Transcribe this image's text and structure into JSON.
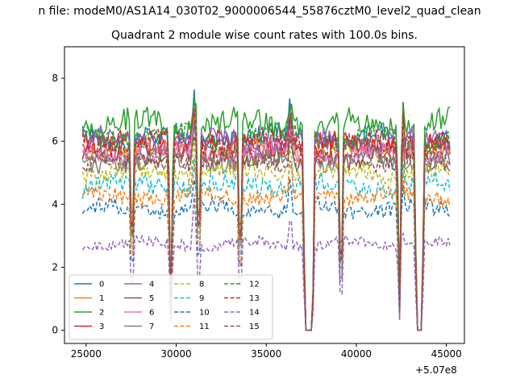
{
  "figure": {
    "suptitle": "n file: modeM0/AS1A14_030T02_9000006544_55876cztM0_level2_quad_clean",
    "offset_label": "+5.07e8"
  },
  "chart_data": {
    "type": "line",
    "title": "Quadrant 2 module wise count rates with 100.0s bins.",
    "xlabel": "",
    "ylabel": "",
    "xlim": [
      23800,
      46000
    ],
    "ylim": [
      -0.42,
      9.0
    ],
    "x_offset": 507000000,
    "x_ticks": [
      25000,
      30000,
      35000,
      40000,
      45000
    ],
    "y_ticks": [
      0,
      2,
      4,
      6,
      8
    ],
    "bin_width_s": 100.0,
    "segments": [
      [
        24800,
        37050
      ],
      [
        37700,
        43250
      ],
      [
        43750,
        45250
      ]
    ],
    "drop_regions": [
      [
        37050,
        37700
      ],
      [
        43250,
        43750
      ]
    ],
    "dips": [
      [
        27550,
        1.9
      ],
      [
        29700,
        0.55
      ],
      [
        31250,
        2.5
      ],
      [
        33550,
        1.5
      ],
      [
        39150,
        0.55
      ],
      [
        42400,
        0.55
      ]
    ],
    "spikes": [
      [
        31000,
        1.35
      ],
      [
        36350,
        1.25
      ],
      [
        42550,
        1.25
      ]
    ],
    "legend": {
      "position": "lower-left",
      "ncol": 4
    },
    "series": [
      {
        "name": "0",
        "color": "#1f77b4",
        "dash": "solid",
        "level": 6.1,
        "noise": 0.35
      },
      {
        "name": "1",
        "color": "#ff7f0e",
        "dash": "solid",
        "level": 5.7,
        "noise": 0.3
      },
      {
        "name": "2",
        "color": "#2ca02c",
        "dash": "solid",
        "level": 6.55,
        "noise": 0.38
      },
      {
        "name": "3",
        "color": "#d62728",
        "dash": "solid",
        "level": 5.9,
        "noise": 0.32
      },
      {
        "name": "4",
        "color": "#9467bd",
        "dash": "solid",
        "level": 6.0,
        "noise": 0.35
      },
      {
        "name": "5",
        "color": "#8c564b",
        "dash": "solid",
        "level": 5.5,
        "noise": 0.3
      },
      {
        "name": "6",
        "color": "#e377c2",
        "dash": "solid",
        "level": 5.6,
        "noise": 0.3
      },
      {
        "name": "7",
        "color": "#7f7f7f",
        "dash": "solid",
        "level": 5.35,
        "noise": 0.28
      },
      {
        "name": "8",
        "color": "#bcbd22",
        "dash": "dashed",
        "level": 5.0,
        "noise": 0.28
      },
      {
        "name": "9",
        "color": "#17becf",
        "dash": "dashed",
        "level": 4.6,
        "noise": 0.3
      },
      {
        "name": "10",
        "color": "#1f77b4",
        "dash": "dashed",
        "level": 3.85,
        "noise": 0.25
      },
      {
        "name": "11",
        "color": "#ff7f0e",
        "dash": "dashed",
        "level": 4.25,
        "noise": 0.25
      },
      {
        "name": "12",
        "color": "#2ca02c",
        "dash": "dashed",
        "level": 6.1,
        "noise": 0.35
      },
      {
        "name": "13",
        "color": "#d62728",
        "dash": "dashed",
        "level": 5.95,
        "noise": 0.33
      },
      {
        "name": "14",
        "color": "#9467bd",
        "dash": "dashed",
        "level": 2.75,
        "noise": 0.18
      },
      {
        "name": "15",
        "color": "#8c564b",
        "dash": "dashed",
        "level": 5.4,
        "noise": 0.28
      }
    ]
  }
}
